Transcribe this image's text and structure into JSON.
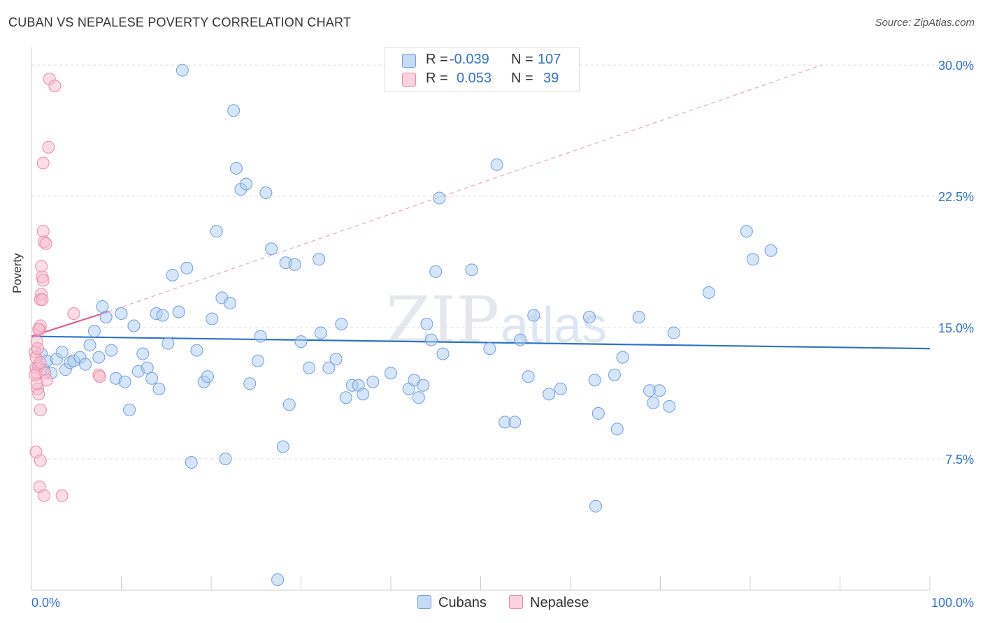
{
  "header": {
    "title": "CUBAN VS NEPALESE POVERTY CORRELATION CHART",
    "source": "Source: ZipAtlas.com"
  },
  "watermark": {
    "zip": "ZIP",
    "atlas": "atlas"
  },
  "legend": {
    "rows": [
      {
        "r_label": "R =",
        "r_value": "-0.039",
        "n_label": "N =",
        "n_value": "107",
        "color": "#a9c8f0"
      },
      {
        "r_label": "R =",
        "r_value": "0.053",
        "n_label": "N =",
        "n_value": "39",
        "color": "#f6b8c9"
      }
    ]
  },
  "bottom_legend": {
    "cubans": "Cubans",
    "nepalese": "Nepalese"
  },
  "colors": {
    "cubans_fill": "#aecbf0",
    "cubans_stroke": "#6f9fdc",
    "cubans_line": "#2f72c8",
    "nepalese_fill": "#f7bccd",
    "nepalese_stroke": "#ea8aa8",
    "nepalese_line": "#e0608a",
    "grid": "#dddddd",
    "axis_label": "#2f72c8"
  },
  "chart_data": {
    "type": "scatter",
    "title": "CUBAN VS NEPALESE POVERTY CORRELATION CHART",
    "xlabel": "",
    "ylabel": "Poverty",
    "xlim": [
      0,
      100
    ],
    "ylim": [
      0,
      31
    ],
    "x_tick_labels": [
      "0.0%",
      "100.0%"
    ],
    "y_ticks": [
      7.5,
      15.0,
      22.5,
      30.0
    ],
    "y_tick_labels": [
      "7.5%",
      "15.0%",
      "22.5%",
      "30.0%"
    ],
    "series": [
      {
        "name": "Cubans",
        "trend": {
          "x": [
            0,
            100
          ],
          "y": [
            14.5,
            13.8
          ],
          "style": "solid"
        },
        "points": [
          [
            1.1,
            13.5
          ],
          [
            0.8,
            12.8
          ],
          [
            1.4,
            12.6
          ],
          [
            1.7,
            13.1
          ],
          [
            2.2,
            12.4
          ],
          [
            2.8,
            13.2
          ],
          [
            3.4,
            13.6
          ],
          [
            3.8,
            12.6
          ],
          [
            4.3,
            13.0
          ],
          [
            4.7,
            13.1
          ],
          [
            5.4,
            13.3
          ],
          [
            6.0,
            12.9
          ],
          [
            6.5,
            14.0
          ],
          [
            7.0,
            14.8
          ],
          [
            7.5,
            13.3
          ],
          [
            7.9,
            16.2
          ],
          [
            8.3,
            15.6
          ],
          [
            8.9,
            13.7
          ],
          [
            9.4,
            12.1
          ],
          [
            10.0,
            15.8
          ],
          [
            10.4,
            11.9
          ],
          [
            10.9,
            10.3
          ],
          [
            11.4,
            15.1
          ],
          [
            11.9,
            12.5
          ],
          [
            12.4,
            13.5
          ],
          [
            12.9,
            12.7
          ],
          [
            13.4,
            12.1
          ],
          [
            13.9,
            15.8
          ],
          [
            14.2,
            11.5
          ],
          [
            14.6,
            15.7
          ],
          [
            15.2,
            14.1
          ],
          [
            15.7,
            18.0
          ],
          [
            16.4,
            15.9
          ],
          [
            16.8,
            29.7
          ],
          [
            17.3,
            18.4
          ],
          [
            17.8,
            7.3
          ],
          [
            18.4,
            13.7
          ],
          [
            19.2,
            11.9
          ],
          [
            19.6,
            12.2
          ],
          [
            20.1,
            15.5
          ],
          [
            20.6,
            20.5
          ],
          [
            21.2,
            16.7
          ],
          [
            21.6,
            7.5
          ],
          [
            22.1,
            16.4
          ],
          [
            22.5,
            27.4
          ],
          [
            22.8,
            24.1
          ],
          [
            23.3,
            22.9
          ],
          [
            23.9,
            23.2
          ],
          [
            24.3,
            11.8
          ],
          [
            25.2,
            13.1
          ],
          [
            25.5,
            14.5
          ],
          [
            26.1,
            22.7
          ],
          [
            26.7,
            19.5
          ],
          [
            27.4,
            0.6
          ],
          [
            28.0,
            8.2
          ],
          [
            28.3,
            18.7
          ],
          [
            28.7,
            10.6
          ],
          [
            29.3,
            18.6
          ],
          [
            30.0,
            14.2
          ],
          [
            30.9,
            12.7
          ],
          [
            32.0,
            18.9
          ],
          [
            32.2,
            14.7
          ],
          [
            33.1,
            12.7
          ],
          [
            33.9,
            13.2
          ],
          [
            34.5,
            15.2
          ],
          [
            35.0,
            11.0
          ],
          [
            35.7,
            11.7
          ],
          [
            36.4,
            11.7
          ],
          [
            36.9,
            11.2
          ],
          [
            38.0,
            11.9
          ],
          [
            40.0,
            12.4
          ],
          [
            42.0,
            11.5
          ],
          [
            42.6,
            12.0
          ],
          [
            43.1,
            11.0
          ],
          [
            43.6,
            11.7
          ],
          [
            44.0,
            15.2
          ],
          [
            44.5,
            14.3
          ],
          [
            45.0,
            18.2
          ],
          [
            45.4,
            22.4
          ],
          [
            45.8,
            13.5
          ],
          [
            49.0,
            18.3
          ],
          [
            51.0,
            13.8
          ],
          [
            51.8,
            24.3
          ],
          [
            52.7,
            9.6
          ],
          [
            53.8,
            9.6
          ],
          [
            54.4,
            14.3
          ],
          [
            55.3,
            12.2
          ],
          [
            55.9,
            15.7
          ],
          [
            57.6,
            11.2
          ],
          [
            58.9,
            11.5
          ],
          [
            62.1,
            15.6
          ],
          [
            62.7,
            12.0
          ],
          [
            63.1,
            10.1
          ],
          [
            64.9,
            12.3
          ],
          [
            65.2,
            9.2
          ],
          [
            65.8,
            13.3
          ],
          [
            67.6,
            15.6
          ],
          [
            68.8,
            11.4
          ],
          [
            69.2,
            10.7
          ],
          [
            69.9,
            11.4
          ],
          [
            71.0,
            10.5
          ],
          [
            71.5,
            14.7
          ],
          [
            75.4,
            17.0
          ],
          [
            79.6,
            20.5
          ],
          [
            80.3,
            18.9
          ],
          [
            82.3,
            19.4
          ],
          [
            62.8,
            4.8
          ]
        ]
      },
      {
        "name": "Nepalese",
        "trend": {
          "x": [
            0,
            8.5
          ],
          "y": [
            14.5,
            15.9
          ],
          "style": "solid",
          "extended": {
            "x": [
              8.5,
              88
            ],
            "y": [
              15.9,
              30.0
            ],
            "style": "dashed"
          }
        },
        "points": [
          [
            0.4,
            13.6
          ],
          [
            0.5,
            12.7
          ],
          [
            0.6,
            12.4
          ],
          [
            0.7,
            11.5
          ],
          [
            0.8,
            11.2
          ],
          [
            0.6,
            14.2
          ],
          [
            0.9,
            14.9
          ],
          [
            1.0,
            15.1
          ],
          [
            1.0,
            16.6
          ],
          [
            1.1,
            16.9
          ],
          [
            1.2,
            17.9
          ],
          [
            1.3,
            17.7
          ],
          [
            1.1,
            18.5
          ],
          [
            1.3,
            20.5
          ],
          [
            1.4,
            19.9
          ],
          [
            1.6,
            19.8
          ],
          [
            1.3,
            24.4
          ],
          [
            1.9,
            25.3
          ],
          [
            2.0,
            29.2
          ],
          [
            2.6,
            28.8
          ],
          [
            1.0,
            10.3
          ],
          [
            0.8,
            12.8
          ],
          [
            1.5,
            12.4
          ],
          [
            1.7,
            12.0
          ],
          [
            0.6,
            11.8
          ],
          [
            0.5,
            7.9
          ],
          [
            1.0,
            7.4
          ],
          [
            0.9,
            5.9
          ],
          [
            1.4,
            5.4
          ],
          [
            3.4,
            5.4
          ],
          [
            4.7,
            15.8
          ],
          [
            7.5,
            12.3
          ],
          [
            7.6,
            12.2
          ],
          [
            0.4,
            12.3
          ],
          [
            0.8,
            14.9
          ],
          [
            1.2,
            16.6
          ],
          [
            0.5,
            13.3
          ],
          [
            0.7,
            13.8
          ],
          [
            1.0,
            13.0
          ]
        ]
      }
    ]
  }
}
